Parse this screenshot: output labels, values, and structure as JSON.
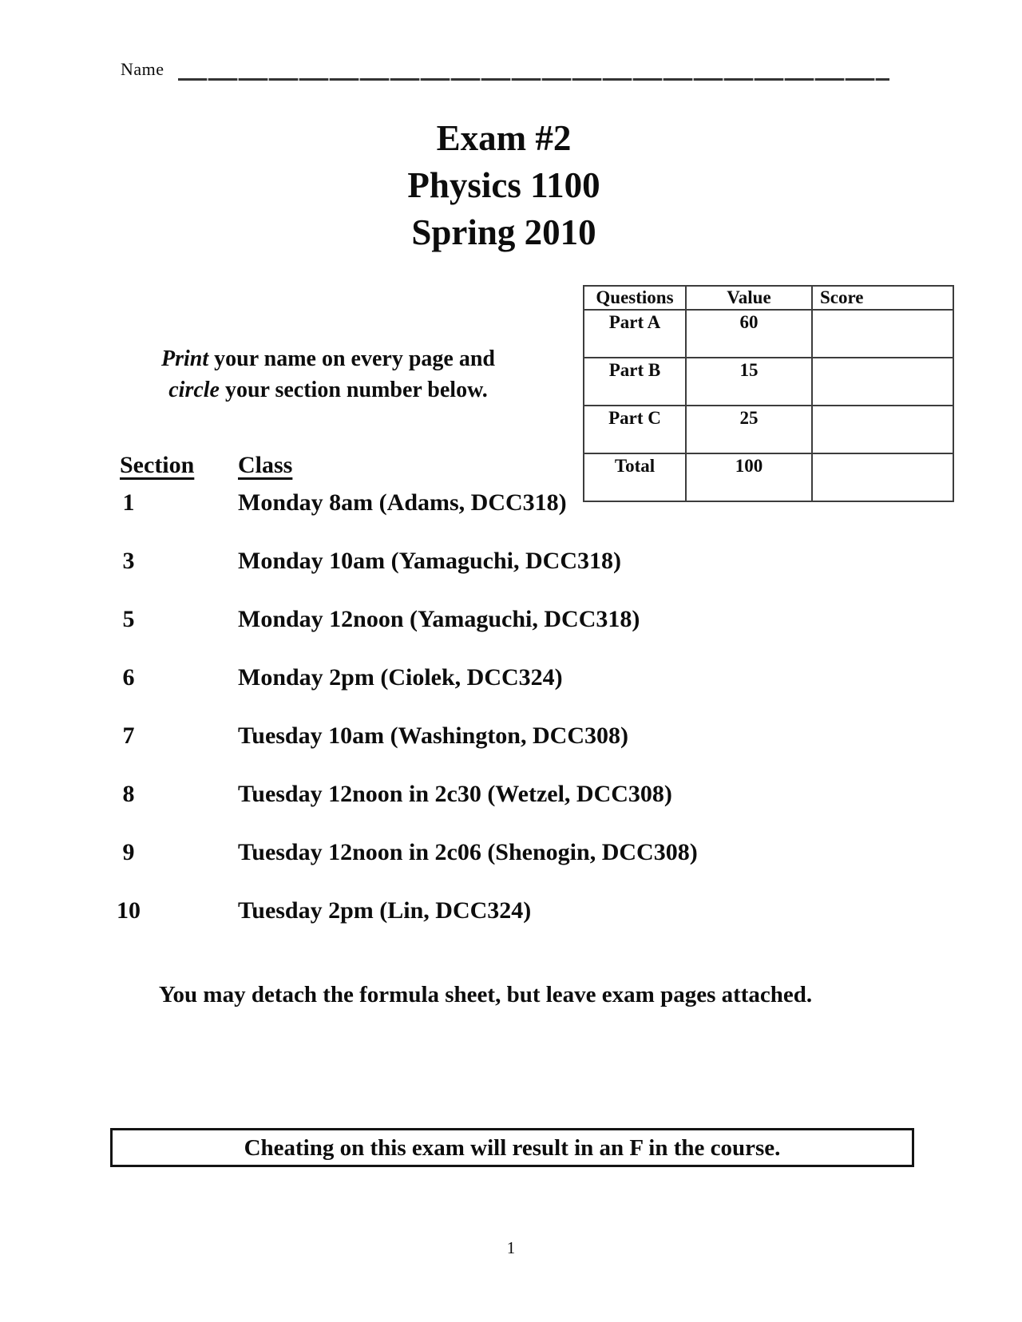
{
  "page": {
    "name_label": "Name",
    "page_number": "1"
  },
  "title": {
    "lines": [
      "Exam #2",
      "Physics 1100",
      "Spring 2010"
    ]
  },
  "score_table": {
    "headers": [
      "Questions",
      "Value",
      "Score"
    ],
    "rows": [
      {
        "question": "Part A",
        "value": "60",
        "score": ""
      },
      {
        "question": "Part B",
        "value": "15",
        "score": ""
      },
      {
        "question": "Part C",
        "value": "25",
        "score": ""
      },
      {
        "question": "Total",
        "value": "100",
        "score": ""
      }
    ]
  },
  "instructions": {
    "line1_italic": "Print",
    "line1_rest": " your name on every page and",
    "line2_italic": "circle",
    "line2_rest": " your section number below."
  },
  "section_list": {
    "section_header": "Section",
    "class_header": "Class",
    "rows": [
      {
        "section": "1",
        "class_desc": "Monday 8am (Adams, DCC318)"
      },
      {
        "section": "3",
        "class_desc": "Monday 10am (Yamaguchi, DCC318)"
      },
      {
        "section": "5",
        "class_desc": "Monday 12noon (Yamaguchi, DCC318)"
      },
      {
        "section": "6",
        "class_desc": "Monday 2pm (Ciolek, DCC324)"
      },
      {
        "section": "7",
        "class_desc": "Tuesday 10am (Washington, DCC308)"
      },
      {
        "section": "8",
        "class_desc": "Tuesday 12noon in 2c30 (Wetzel, DCC308)"
      },
      {
        "section": "9",
        "class_desc": "Tuesday 12noon in 2c06 (Shenogin, DCC308)"
      },
      {
        "section": "10",
        "class_desc": "Tuesday 2pm (Lin, DCC324)"
      }
    ]
  },
  "notes": {
    "detach": "You may detach the formula sheet, but leave exam pages attached.",
    "warning": "Cheating on this exam will result in an F in the course."
  },
  "colors": {
    "text": "#0d0d0d",
    "table_border": "#3d3d3d",
    "warning_border": "#141414",
    "page_background": "#ffffff"
  }
}
